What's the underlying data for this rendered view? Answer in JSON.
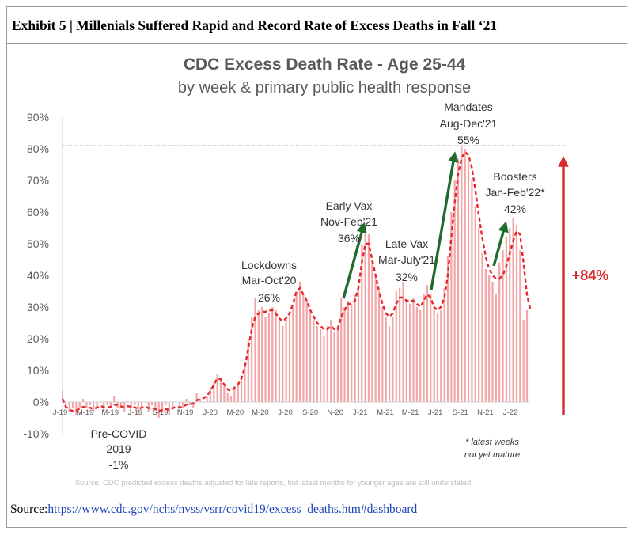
{
  "exhibit": {
    "title": "Exhibit 5 | Millenials Suffered Rapid and Record Rate of Excess Deaths in Fall ‘21"
  },
  "source": {
    "label": "Source:",
    "url": "https://www.cdc.gov/nchs/nvss/vsrr/covid19/excess_deaths.htm#dashboard"
  },
  "colors": {
    "bars": "#f3a6a8",
    "trend": "#e8262a",
    "up_arrow": "#1f6b2c",
    "total_arrow": "#d62a2a",
    "title_text": "#595959",
    "axis_text": "#595959",
    "note_text": "#bdbdbd"
  },
  "chart_data": {
    "type": "bar",
    "title": "CDC Excess Death Rate - Age 25-44",
    "subtitle": "by week & primary public health response",
    "xlabel": "",
    "ylabel": "",
    "ylim": [
      -10,
      90
    ],
    "yticks": [
      "-10%",
      "0%",
      "10%",
      "20%",
      "30%",
      "40%",
      "50%",
      "60%",
      "70%",
      "80%",
      "90%"
    ],
    "xticks": [
      "J-19",
      "M-19",
      "M-19",
      "J-19",
      "S-19",
      "N-19",
      "J-20",
      "M-20",
      "M-20",
      "J-20",
      "S-20",
      "N-20",
      "J-21",
      "M-21",
      "M-21",
      "J-21",
      "S-21",
      "N-21",
      "J-22"
    ],
    "reference_line": 81,
    "series": [
      {
        "kind": "weekly bars",
        "values": [
          3.5,
          -1,
          -3,
          -2,
          -4,
          -2,
          1,
          -2,
          -1,
          -3,
          -2,
          0,
          -3,
          -1,
          -2,
          2,
          -2,
          -1,
          -3,
          0,
          -2,
          -1,
          -4,
          -2,
          0,
          -3,
          -1,
          -2,
          -5,
          -3,
          -1,
          -4,
          -2,
          0,
          -3,
          -2,
          1,
          -1,
          -2,
          3,
          1,
          0,
          2,
          4,
          6,
          9,
          7,
          5,
          3,
          2,
          5,
          6,
          8,
          12,
          20,
          27,
          33,
          29,
          30,
          27,
          28,
          30,
          29,
          26,
          24,
          26,
          28,
          30,
          35,
          38,
          34,
          32,
          28,
          26,
          24,
          23,
          21,
          24,
          26,
          22,
          24,
          33,
          30,
          32,
          31,
          34,
          37,
          50,
          55,
          53,
          45,
          40,
          35,
          30,
          27,
          24,
          27,
          35,
          36,
          38,
          32,
          31,
          33,
          30,
          29,
          34,
          37,
          34,
          30,
          28,
          29,
          36,
          46,
          60,
          70,
          77,
          81,
          80,
          76,
          70,
          62,
          55,
          47,
          42,
          40,
          38,
          34,
          44,
          48,
          52,
          55,
          58,
          56,
          48,
          26,
          29
        ]
      },
      {
        "kind": "trend",
        "values": [
          1,
          -1.5,
          -2.5,
          -2.8,
          -2.7,
          -2,
          -1.5,
          -1.7,
          -1.8,
          -2.1,
          -1.8,
          -1.2,
          -1.6,
          -1.7,
          -1.5,
          -0.8,
          -1,
          -1.4,
          -1.6,
          -1.3,
          -1.5,
          -1.7,
          -2.1,
          -1.8,
          -1.5,
          -1.9,
          -1.9,
          -2.2,
          -2.8,
          -2.5,
          -2.2,
          -2.5,
          -2,
          -1.5,
          -1.7,
          -1.5,
          -0.8,
          -0.6,
          -0.5,
          0.5,
          1,
          1.2,
          2,
          3.5,
          5.5,
          7.5,
          7.2,
          5.5,
          4,
          3.5,
          4.5,
          5.5,
          7.5,
          11,
          17,
          23,
          27,
          28,
          28.5,
          28.5,
          29,
          29,
          28,
          26.5,
          25.5,
          26.5,
          28,
          31,
          35,
          36,
          34,
          32,
          29,
          27,
          25,
          24,
          23,
          23,
          24,
          23,
          23,
          27,
          29,
          31,
          31,
          32,
          36,
          44,
          50,
          50,
          45,
          40,
          35,
          31,
          28,
          27,
          28,
          31,
          33,
          33,
          32,
          32,
          32,
          31,
          30,
          32,
          34,
          33,
          30,
          29,
          30,
          33,
          40,
          52,
          63,
          72,
          77,
          79,
          78,
          74,
          67,
          59,
          52,
          46,
          42,
          40,
          39,
          39,
          40,
          43,
          47,
          51,
          54,
          53,
          44,
          34,
          29
        ]
      }
    ],
    "annotations": [
      {
        "lines": [
          "Lockdowns",
          "Mar-Oct'20",
          "26%"
        ]
      },
      {
        "lines": [
          "Early Vax",
          "Nov-Feb'21",
          "36%"
        ]
      },
      {
        "lines": [
          "Late Vax",
          "Mar-July'21",
          "32%"
        ]
      },
      {
        "lines": [
          "Mandates",
          "Aug-Dec'21",
          "55%"
        ]
      },
      {
        "lines": [
          "Boosters",
          "Jan-Feb'22*",
          "42%"
        ]
      },
      {
        "lines": [
          "Pre-COVID",
          "2019",
          "-1%"
        ]
      },
      {
        "lines": [
          "* latest weeks",
          "not yet mature"
        ]
      },
      {
        "lines": [
          "+84%"
        ]
      }
    ],
    "source_note": "Source: CDC predicted excess deaths adjusted for late reports, but latest months for younger ages are still understated"
  }
}
